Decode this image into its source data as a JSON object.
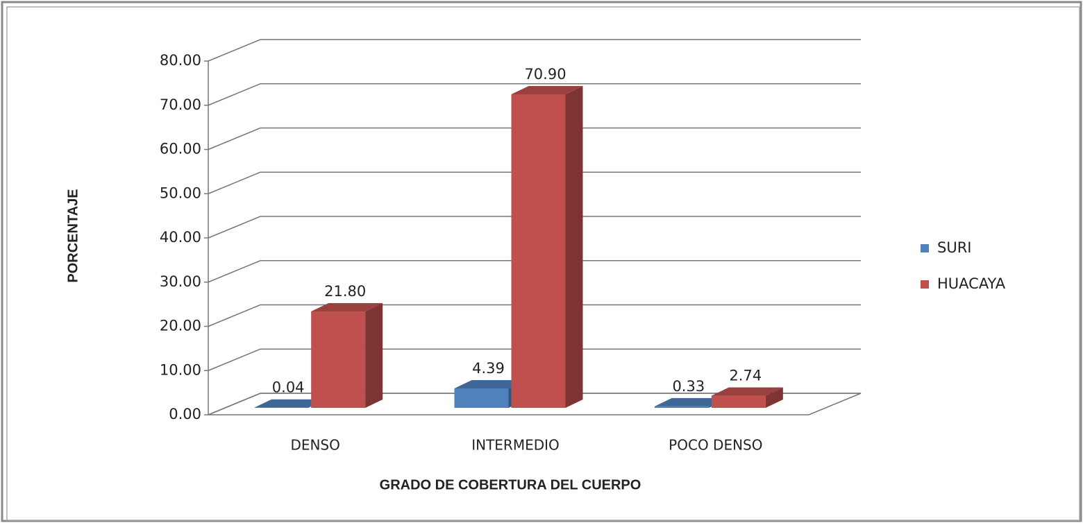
{
  "chart_data": {
    "type": "bar3d",
    "ylabel": "PORCENTAJE",
    "xlabel": "GRADO DE COBERTURA DEL CUERPO",
    "categories": [
      "DENSO",
      "INTERMEDIO",
      "POCO DENSO"
    ],
    "series": [
      {
        "name": "SURI",
        "color": "#4f81bd",
        "values": [
          0.04,
          4.39,
          0.33
        ],
        "value_labels": [
          "0.04",
          "4.39",
          "0.33"
        ]
      },
      {
        "name": "HUACAYA",
        "color": "#c0504d",
        "values": [
          21.8,
          70.9,
          2.74
        ],
        "value_labels": [
          "21.80",
          "70.90",
          "2.74"
        ]
      }
    ],
    "ylim": [
      0,
      80
    ],
    "yticks": [
      {
        "value": 0,
        "label": "0.00"
      },
      {
        "value": 10,
        "label": "10.00"
      },
      {
        "value": 20,
        "label": "20.00"
      },
      {
        "value": 30,
        "label": "30.00"
      },
      {
        "value": 40,
        "label": "40.00"
      },
      {
        "value": 50,
        "label": "50.00"
      },
      {
        "value": 60,
        "label": "60.00"
      },
      {
        "value": 70,
        "label": "70.00"
      },
      {
        "value": 80,
        "label": "80.00"
      }
    ],
    "grid": true,
    "legend": "right"
  }
}
